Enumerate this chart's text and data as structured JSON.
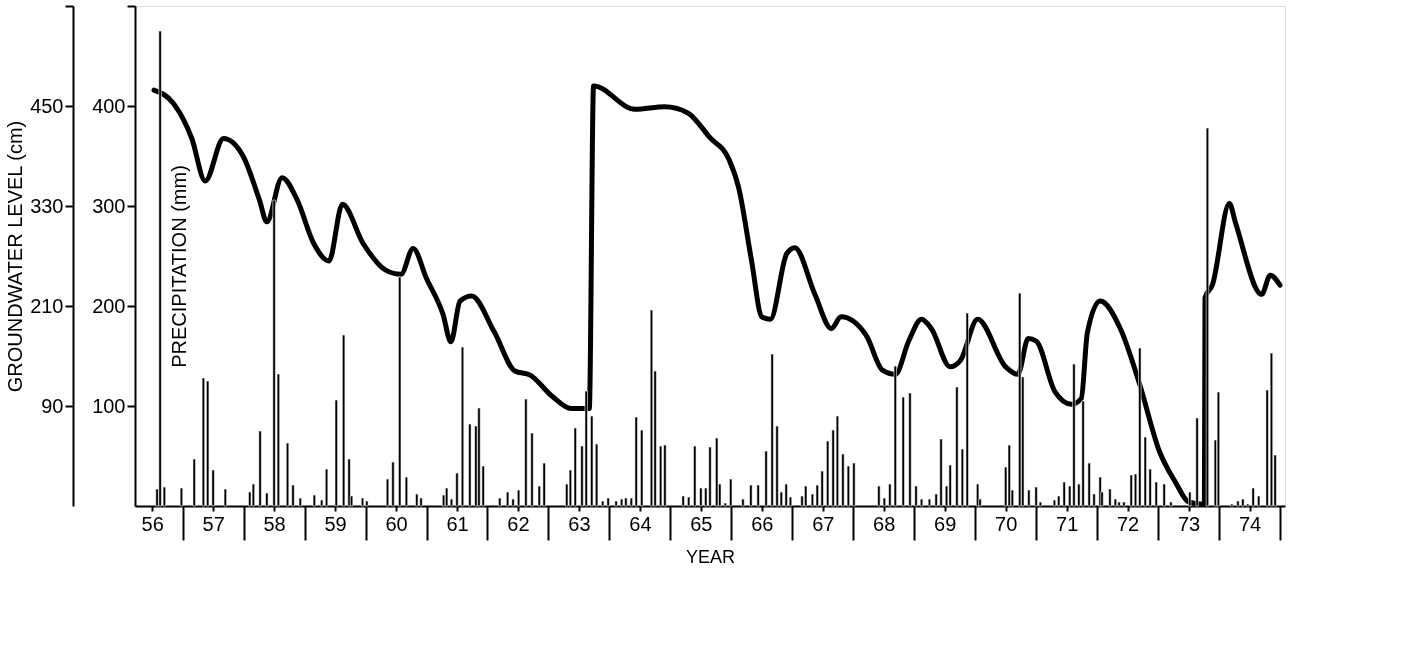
{
  "chart_data": {
    "type": "line",
    "xlabel": "YEAR",
    "ylabel": "GROUNDWATER LEVEL (cm)",
    "y2label": "PRECIPITATION (mm)",
    "xlim": [
      55.8,
      74.5
    ],
    "xticks": [
      56,
      57,
      58,
      59,
      60,
      61,
      62,
      63,
      64,
      65,
      66,
      67,
      68,
      69,
      70,
      71,
      72,
      73,
      74
    ],
    "ylim": [
      -30,
      570
    ],
    "yticks": [
      90,
      210,
      330,
      450,
      {
        "value": 570,
        "label": null
      }
    ],
    "y2lim": [
      0,
      500
    ],
    "y2ticks": [
      100,
      200,
      300,
      400,
      {
        "value": 500,
        "label": null
      }
    ],
    "grid": false,
    "series": [
      {
        "type": "bar",
        "axis": "y2",
        "color": "#000000",
        "x": [
          56.08,
          56.13,
          56.2,
          56.48,
          56.69,
          56.84,
          56.91,
          57.0,
          57.2,
          57.6,
          57.66,
          57.77,
          57.88,
          58.0,
          58.07,
          58.22,
          58.31,
          58.43,
          58.66,
          58.78,
          58.86,
          59.02,
          59.14,
          59.23,
          59.27,
          59.45,
          59.52,
          59.86,
          59.95,
          60.06,
          60.17,
          60.34,
          60.41,
          60.78,
          60.83,
          60.91,
          61.0,
          61.09,
          61.21,
          61.31,
          61.36,
          61.43,
          61.7,
          61.83,
          61.92,
          62.01,
          62.13,
          62.23,
          62.35,
          62.43,
          62.8,
          62.86,
          62.94,
          63.05,
          63.12,
          63.21,
          63.29,
          63.39,
          63.48,
          63.61,
          63.7,
          63.77,
          63.86,
          63.94,
          64.03,
          64.19,
          64.25,
          64.34,
          64.41,
          64.71,
          64.8,
          64.9,
          65.0,
          65.08,
          65.15,
          65.26,
          65.31,
          65.4,
          65.49,
          65.69,
          65.82,
          65.94,
          66.07,
          66.17,
          66.25,
          66.32,
          66.4,
          66.47,
          66.66,
          66.72,
          66.83,
          66.91,
          66.99,
          67.08,
          67.17,
          67.24,
          67.33,
          67.42,
          67.51,
          67.92,
          68.01,
          68.1,
          68.19,
          68.32,
          68.43,
          68.53,
          68.62,
          68.75,
          68.86,
          68.94,
          69.03,
          69.09,
          69.2,
          69.29,
          69.37,
          69.54,
          69.58,
          70.0,
          70.06,
          70.11,
          70.23,
          70.28,
          70.38,
          70.5,
          70.57,
          70.8,
          70.87,
          70.96,
          71.05,
          71.12,
          71.2,
          71.27,
          71.37,
          71.45,
          71.55,
          71.58,
          71.71,
          71.8,
          71.86,
          71.94,
          72.06,
          72.13,
          72.2,
          72.29,
          72.37,
          72.47,
          72.6,
          72.71,
          73.02,
          73.14,
          73.31,
          73.44,
          73.49,
          73.71,
          73.81,
          73.89,
          73.97,
          74.06,
          74.15,
          74.29,
          74.36,
          74.42
        ],
        "values": [
          17,
          475,
          19,
          18,
          47,
          128,
          125,
          36,
          17,
          14,
          22,
          75,
          13,
          306,
          132,
          63,
          21,
          8,
          11,
          6,
          37,
          106,
          171,
          47,
          10,
          8,
          5,
          27,
          44,
          229,
          29,
          12,
          8,
          11,
          18,
          7,
          33,
          159,
          82,
          80,
          98,
          40,
          8,
          14,
          7,
          16,
          107,
          73,
          20,
          43,
          22,
          36,
          78,
          60,
          115,
          90,
          62,
          5,
          8,
          5,
          7,
          8,
          8,
          89,
          76,
          196,
          135,
          60,
          61,
          10,
          9,
          60,
          18,
          18,
          59,
          68,
          22,
          3,
          27,
          7,
          21,
          21,
          55,
          152,
          80,
          14,
          22,
          9,
          10,
          20,
          12,
          21,
          35,
          65,
          76,
          90,
          52,
          40,
          43,
          20,
          8,
          22,
          140,
          109,
          113,
          20,
          7,
          7,
          12,
          67,
          20,
          41,
          119,
          57,
          193,
          22,
          7,
          39,
          61,
          16,
          213,
          129,
          16,
          19,
          4,
          6,
          10,
          24,
          20,
          142,
          22,
          105,
          43,
          12,
          29,
          14,
          17,
          7,
          4,
          4,
          31,
          32,
          158,
          69,
          37,
          24,
          22,
          4,
          14,
          88,
          378,
          66,
          114,
          2,
          5,
          7,
          2,
          18,
          10,
          116,
          153,
          51
        ]
      },
      {
        "color": "#000000",
        "line_style": "solid",
        "marker": "none",
        "x": [
          56.03,
          56.35,
          56.65,
          56.87,
          57.17,
          57.49,
          57.76,
          57.88,
          58.13,
          58.38,
          58.65,
          58.9,
          59.12,
          59.46,
          59.83,
          60.08,
          60.28,
          60.5,
          60.77,
          60.9,
          61.05,
          61.24,
          61.61,
          61.95,
          62.2,
          62.57,
          62.87,
          63.17,
          63.24,
          63.92,
          64.41,
          64.78,
          65.15,
          65.46,
          65.62,
          65.83,
          66.0,
          66.14,
          66.41,
          66.54,
          66.87,
          67.14,
          67.3,
          67.71,
          67.98,
          68.19,
          68.41,
          68.62,
          68.78,
          69.09,
          69.26,
          69.54,
          70.0,
          70.2,
          70.37,
          70.5,
          70.81,
          71.08,
          71.24,
          71.34,
          71.55,
          71.88,
          72.19,
          72.52,
          72.79,
          73.0,
          73.26,
          73.27,
          73.39,
          73.67,
          73.77,
          74.2,
          74.34,
          74.5
        ],
        "values": [
          469,
          453,
          411,
          360,
          411,
          390,
          337,
          311,
          364,
          337,
          285,
          264,
          332,
          285,
          253,
          248,
          279,
          243,
          200,
          167,
          216,
          222,
          179,
          132,
          127,
          101,
          87,
          87,
          474,
          446,
          449,
          442,
          412,
          386,
          352,
          265,
          197,
          194,
          273,
          280,
          224,
          183,
          197,
          175,
          133,
          128,
          168,
          194,
          183,
          137,
          145,
          194,
          137,
          128,
          171,
          168,
          107,
          92,
          99,
          178,
          216,
          183,
          118,
          36,
          -2,
          -25,
          -28,
          220,
          235,
          333,
          310,
          224,
          247,
          235
        ]
      }
    ]
  }
}
